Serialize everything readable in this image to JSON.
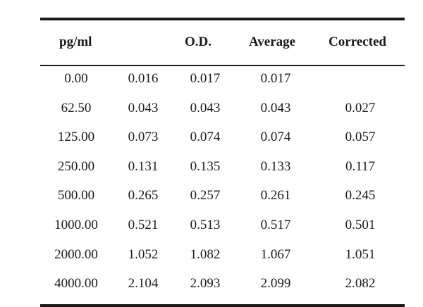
{
  "table": {
    "headers": {
      "concentration": "pg/ml",
      "od": "O.D.",
      "average": "Average",
      "corrected": "Corrected"
    },
    "rows": [
      {
        "concentration": "0.00",
        "od1": "0.016",
        "od2": "0.017",
        "average": "0.017",
        "corrected": ""
      },
      {
        "concentration": "62.50",
        "od1": "0.043",
        "od2": "0.043",
        "average": "0.043",
        "corrected": "0.027"
      },
      {
        "concentration": "125.00",
        "od1": "0.073",
        "od2": "0.074",
        "average": "0.074",
        "corrected": "0.057"
      },
      {
        "concentration": "250.00",
        "od1": "0.131",
        "od2": "0.135",
        "average": "0.133",
        "corrected": "0.117"
      },
      {
        "concentration": "500.00",
        "od1": "0.265",
        "od2": "0.257",
        "average": "0.261",
        "corrected": "0.245"
      },
      {
        "concentration": "1000.00",
        "od1": "0.521",
        "od2": "0.513",
        "average": "0.517",
        "corrected": "0.501"
      },
      {
        "concentration": "2000.00",
        "od1": "1.052",
        "od2": "1.082",
        "average": "1.067",
        "corrected": "1.051"
      },
      {
        "concentration": "4000.00",
        "od1": "2.104",
        "od2": "2.093",
        "average": "2.099",
        "corrected": "2.082"
      }
    ]
  }
}
